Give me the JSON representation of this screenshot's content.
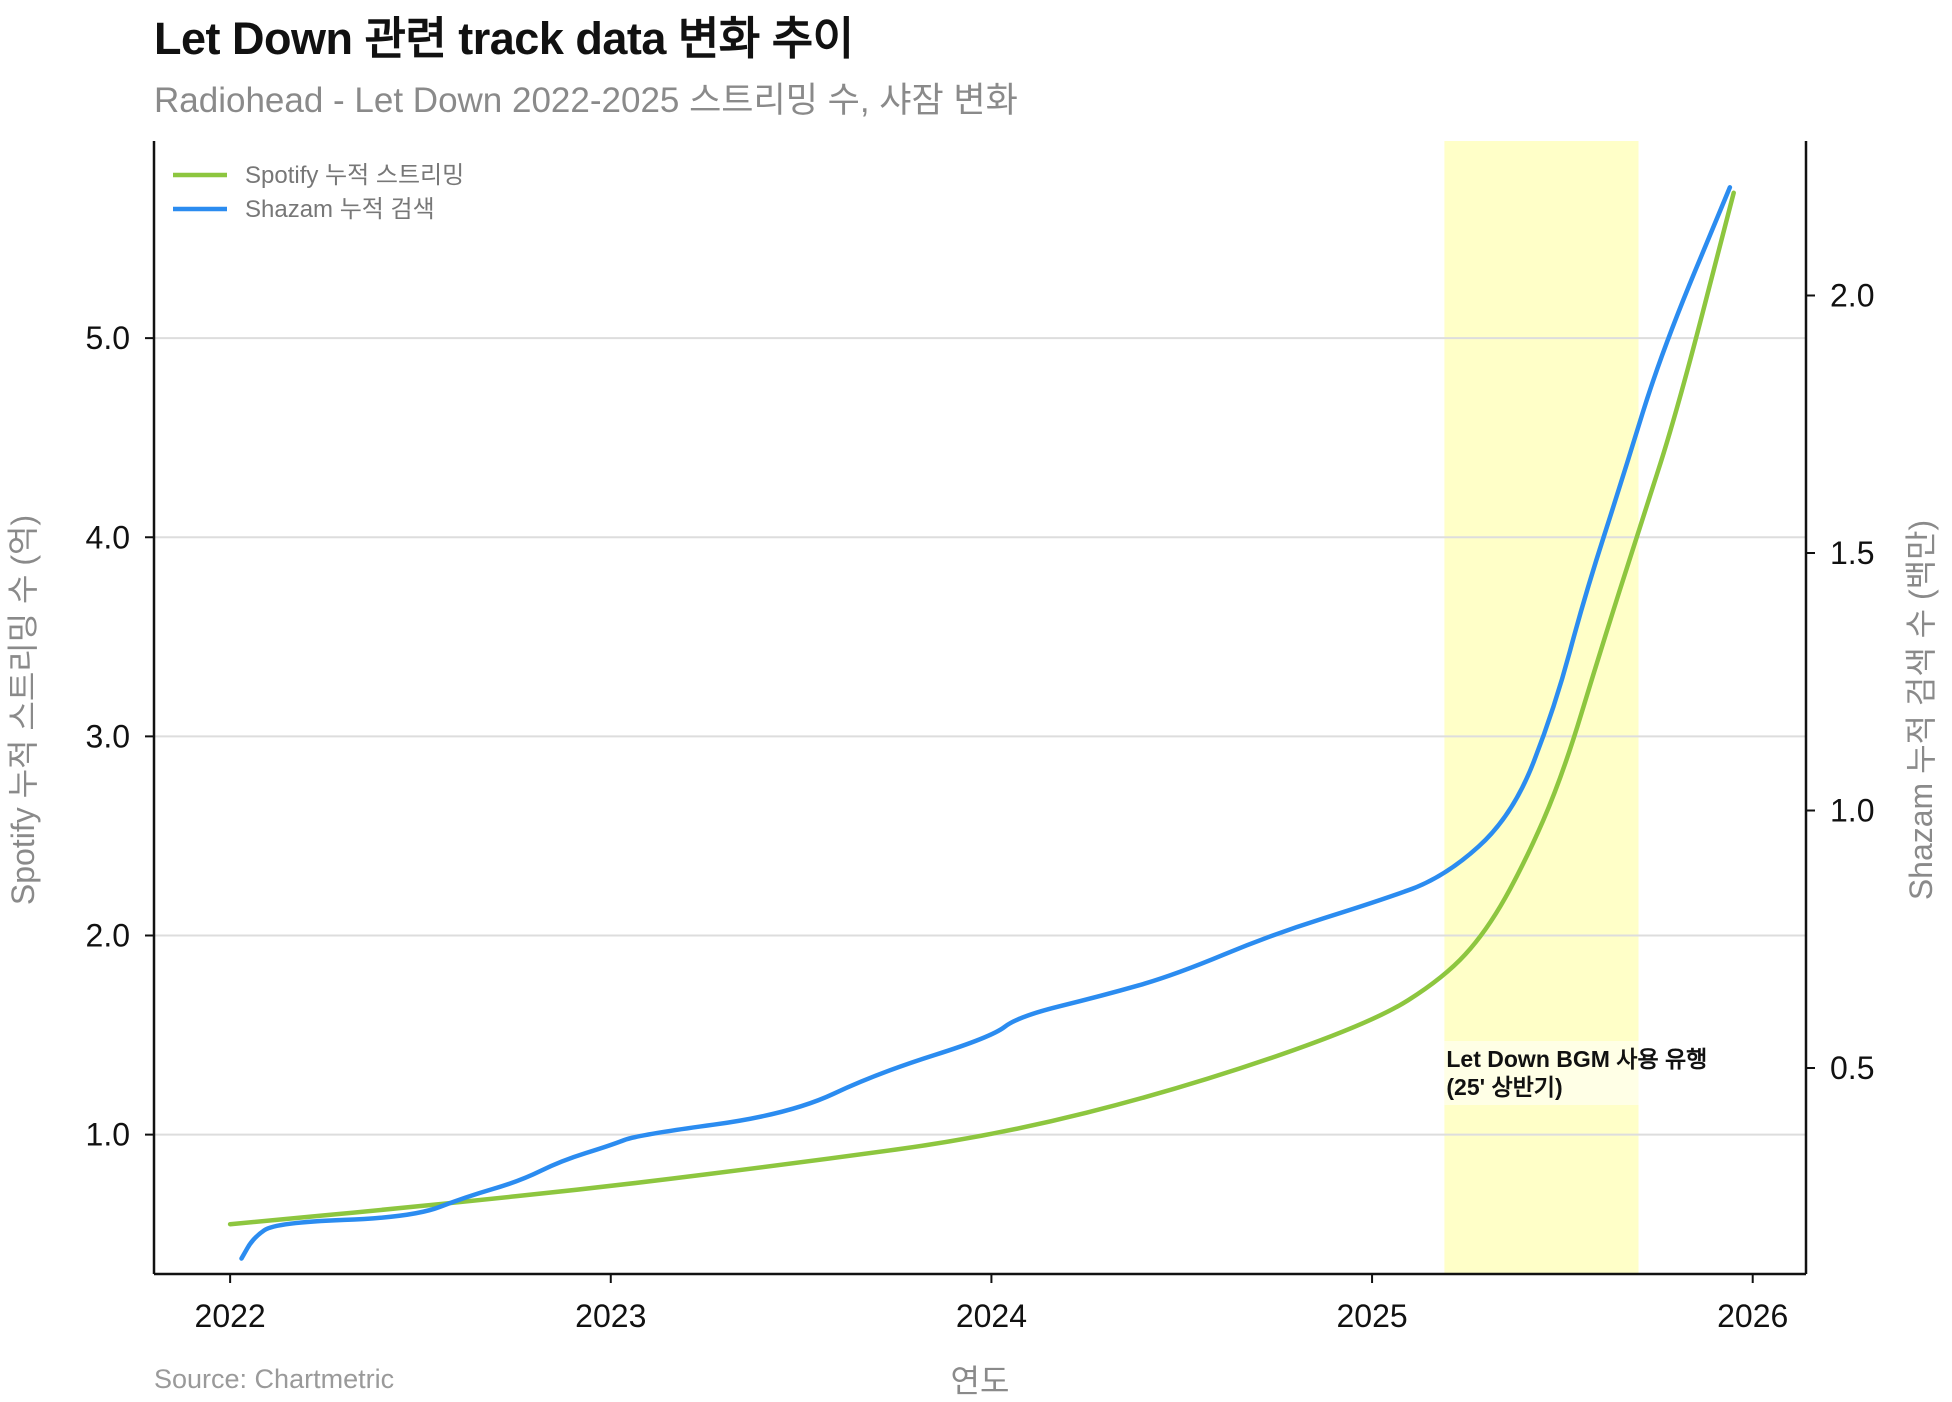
{
  "header": {
    "title": "Let Down 관련 track data 변화 추이",
    "subtitle": "Radiohead - Let Down 2022-2025 스트리밍 수, 샤잠 변화"
  },
  "footer": {
    "source": "Source: Chartmetric"
  },
  "chart_data": {
    "type": "line",
    "title": "Let Down 관련 track data 변화 추이",
    "subtitle": "Radiohead - Let Down 2022-2025 스트리밍 수, 샤잠 변화",
    "xlabel": "연도",
    "ylabel": "Spotify 누적 스트리밍 수 (억)",
    "ylabel_right": "Shazam 누적 검색 수 (백만)",
    "xlim": [
      2021.8,
      2026.14
    ],
    "ylim": [
      0.3,
      5.99
    ],
    "ylim_right": [
      0.1,
      2.3
    ],
    "x_ticks": [
      2022,
      2023,
      2024,
      2025,
      2026
    ],
    "x_tick_labels": [
      "2022",
      "2023",
      "2024",
      "2025",
      "2026"
    ],
    "y_ticks": [
      1.0,
      2.0,
      3.0,
      4.0,
      5.0
    ],
    "y_tick_labels": [
      "1.0",
      "2.0",
      "3.0",
      "4.0",
      "5.0"
    ],
    "y_ticks_right": [
      0.5,
      1.0,
      1.5,
      2.0
    ],
    "y_tick_labels_right": [
      "0.5",
      "1.0",
      "1.5",
      "2.0"
    ],
    "grid": "horizontal (left axis)",
    "legend_position": "top-left",
    "series": [
      {
        "name": "Spotify 누적 스트리밍",
        "axis": "left",
        "color": "#8dc63f",
        "x": [
          2022.0,
          2022.5,
          2023.0,
          2023.5,
          2024.0,
          2024.5,
          2025.0,
          2025.19,
          2025.3,
          2025.4,
          2025.5,
          2025.6,
          2025.7,
          2025.8,
          2025.95
        ],
        "values": [
          0.55,
          0.64,
          0.74,
          0.86,
          0.99,
          1.23,
          1.56,
          1.79,
          2.02,
          2.36,
          2.8,
          3.43,
          4.03,
          4.62,
          5.73
        ]
      },
      {
        "name": "Shazam 누적 검색",
        "axis": "right",
        "color": "#2b8cf0",
        "x": [
          2022.03,
          2022.06,
          2022.12,
          2022.48,
          2022.62,
          2022.76,
          2022.87,
          2023.0,
          2023.07,
          2023.47,
          2023.7,
          2024.0,
          2024.07,
          2024.29,
          2024.48,
          2024.74,
          2025.0,
          2025.19,
          2025.37,
          2025.48,
          2025.56,
          2025.66,
          2025.76,
          2025.94
        ],
        "values": [
          0.13,
          0.17,
          0.2,
          0.21,
          0.25,
          0.28,
          0.32,
          0.35,
          0.37,
          0.41,
          0.49,
          0.56,
          0.6,
          0.64,
          0.68,
          0.76,
          0.82,
          0.87,
          0.99,
          1.2,
          1.42,
          1.65,
          1.89,
          2.21
        ]
      }
    ],
    "highlight": {
      "x_start": 2025.19,
      "x_end": 2025.7,
      "color": "#ffffc8"
    },
    "annotation": {
      "lines": [
        "Let Down BGM 사용 유행",
        "(25' 상반기)"
      ],
      "x": 2025.19,
      "y": 1.45
    }
  }
}
